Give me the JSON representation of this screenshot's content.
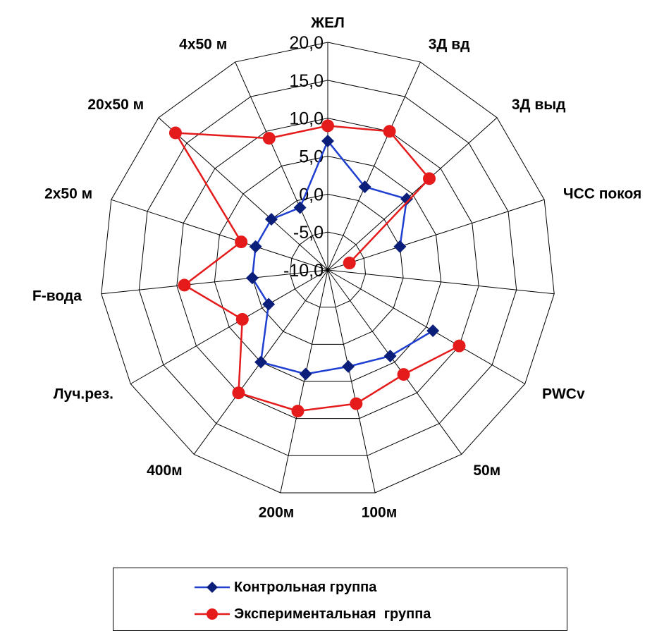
{
  "chart_data": {
    "type": "radar",
    "axes": [
      "ЖЕЛ",
      "3Д вд",
      "3Д выд",
      "ЧСС покоя",
      "",
      "PWCv",
      "50м",
      "100м",
      "200м",
      "400м",
      "Луч.рез.",
      "F-вода",
      "2х50 м",
      "20х50 м",
      "4х50 м"
    ],
    "rlim": [
      -10.0,
      20.0
    ],
    "ticks": [
      "-10,0",
      "-5,0",
      "0,0",
      "5,0",
      "10,0",
      "15,0",
      "20,0"
    ],
    "grid": true,
    "legend_position": "bottom",
    "series": [
      {
        "name": "Контрольная группа",
        "color": "#1f3fd1",
        "marker": "diamond",
        "values": [
          7.0,
          2.0,
          4.0,
          0.0,
          null,
          6.0,
          4.0,
          3.0,
          4.0,
          5.0,
          -1.0,
          0.0,
          0.0,
          0.0,
          -1.0
        ]
      },
      {
        "name": "Экспериментальная  группа",
        "color": "#e51b1b",
        "marker": "circle",
        "values": [
          9.0,
          10.0,
          8.0,
          -7.0,
          null,
          10.0,
          7.0,
          8.0,
          9.0,
          10.0,
          3.0,
          9.0,
          2.0,
          17.0,
          9.0
        ]
      }
    ]
  }
}
